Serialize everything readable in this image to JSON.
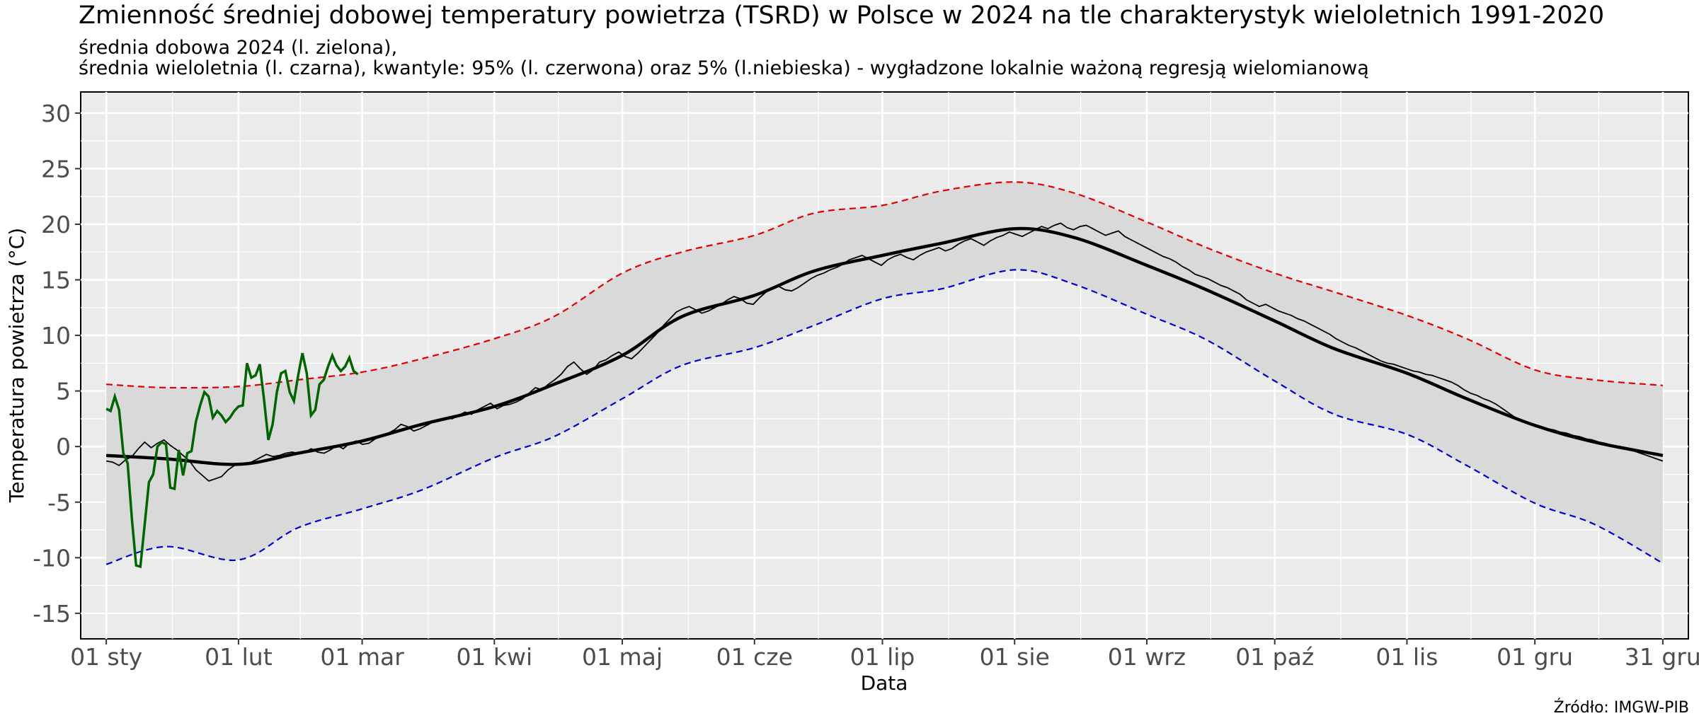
{
  "title": "Zmienność średniej dobowej temperatury powietrza (TSRD) w Polsce w 2024 na tle charakterystyk wieloletnich 1991-2020",
  "subtitle_line1": "średnia dobowa 2024 (l. zielona),",
  "subtitle_line2": "średnia wieloletnia (l. czarna), kwantyle: 95% (l. czerwona) oraz 5% (l.niebieska) - wygładzone lokalnie ważoną regresją wielomianową",
  "source": "Źródło: IMGW-PIB",
  "chart_data": {
    "type": "line",
    "xlabel": "Data",
    "ylabel": "Temperatura powietrza (°C)",
    "xlim": [
      "2024-01-01",
      "2024-12-31"
    ],
    "ylim": [
      -17.3,
      31.9
    ],
    "x_ticks": [
      {
        "date": "2024-01-01",
        "label": "01 sty"
      },
      {
        "date": "2024-02-01",
        "label": "01 lut"
      },
      {
        "date": "2024-03-01",
        "label": "01 mar"
      },
      {
        "date": "2024-04-01",
        "label": "01 kwi"
      },
      {
        "date": "2024-05-01",
        "label": "01 maj"
      },
      {
        "date": "2024-06-01",
        "label": "01 cze"
      },
      {
        "date": "2024-07-01",
        "label": "01 lip"
      },
      {
        "date": "2024-08-01",
        "label": "01 sie"
      },
      {
        "date": "2024-09-01",
        "label": "01 wrz"
      },
      {
        "date": "2024-10-01",
        "label": "01 paź"
      },
      {
        "date": "2024-11-01",
        "label": "01 lis"
      },
      {
        "date": "2024-12-01",
        "label": "01 gru"
      },
      {
        "date": "2024-12-31",
        "label": "31 gru"
      }
    ],
    "y_ticks": [
      -15,
      -10,
      -5,
      0,
      5,
      10,
      15,
      20,
      25,
      30
    ],
    "grid": true,
    "colors": {
      "panel": "#ebebeb",
      "grid": "#ffffff",
      "band": "#d9d9d9",
      "daily_2024": "#006400",
      "mean": "#000000",
      "q95": "#e00000",
      "q05": "#0000cc"
    },
    "series": [
      {
        "name": "średnia dobowa 2024",
        "color": "#006400",
        "points": [
          [
            "2024-01-01",
            3.4
          ],
          [
            "2024-01-02",
            3.2
          ],
          [
            "2024-01-03",
            4.5
          ],
          [
            "2024-01-04",
            3.3
          ],
          [
            "2024-01-05",
            -0.6
          ],
          [
            "2024-01-06",
            -1.5
          ],
          [
            "2024-01-07",
            -6.5
          ],
          [
            "2024-01-08",
            -10.7
          ],
          [
            "2024-01-09",
            -10.8
          ],
          [
            "2024-01-10",
            -7.0
          ],
          [
            "2024-01-11",
            -3.2
          ],
          [
            "2024-01-12",
            -2.5
          ],
          [
            "2024-01-13",
            0.0
          ],
          [
            "2024-01-14",
            0.4
          ],
          [
            "2024-01-15",
            0.2
          ],
          [
            "2024-01-16",
            -3.7
          ],
          [
            "2024-01-17",
            -3.8
          ],
          [
            "2024-01-18",
            -0.3
          ],
          [
            "2024-01-19",
            -2.6
          ],
          [
            "2024-01-20",
            -0.6
          ],
          [
            "2024-01-21",
            -0.4
          ],
          [
            "2024-01-22",
            2.2
          ],
          [
            "2024-01-23",
            3.7
          ],
          [
            "2024-01-24",
            4.9
          ],
          [
            "2024-01-25",
            4.5
          ],
          [
            "2024-01-26",
            2.6
          ],
          [
            "2024-01-27",
            3.2
          ],
          [
            "2024-01-28",
            2.8
          ],
          [
            "2024-01-29",
            2.2
          ],
          [
            "2024-01-30",
            2.6
          ],
          [
            "2024-01-31",
            3.2
          ],
          [
            "2024-02-01",
            3.6
          ],
          [
            "2024-02-02",
            3.7
          ],
          [
            "2024-02-03",
            7.5
          ],
          [
            "2024-02-04",
            6.2
          ],
          [
            "2024-02-05",
            6.4
          ],
          [
            "2024-02-06",
            7.4
          ],
          [
            "2024-02-07",
            4.2
          ],
          [
            "2024-02-08",
            0.6
          ],
          [
            "2024-02-09",
            2.0
          ],
          [
            "2024-02-10",
            4.9
          ],
          [
            "2024-02-11",
            6.6
          ],
          [
            "2024-02-12",
            6.8
          ],
          [
            "2024-02-13",
            4.9
          ],
          [
            "2024-02-14",
            4.1
          ],
          [
            "2024-02-15",
            6.4
          ],
          [
            "2024-02-16",
            8.4
          ],
          [
            "2024-02-17",
            6.6
          ],
          [
            "2024-02-18",
            2.8
          ],
          [
            "2024-02-19",
            3.3
          ],
          [
            "2024-02-20",
            5.6
          ],
          [
            "2024-02-21",
            6.0
          ],
          [
            "2024-02-22",
            7.2
          ],
          [
            "2024-02-23",
            8.2
          ],
          [
            "2024-02-24",
            7.3
          ],
          [
            "2024-02-25",
            6.8
          ],
          [
            "2024-02-26",
            7.2
          ],
          [
            "2024-02-27",
            8.0
          ],
          [
            "2024-02-28",
            6.8
          ],
          [
            "2024-02-29",
            6.5
          ]
        ]
      },
      {
        "name": "średnia wieloletnia",
        "color": "#000000",
        "points": [
          [
            "2024-01-01",
            -0.8
          ],
          [
            "2024-01-15",
            -1.1
          ],
          [
            "2024-02-01",
            -1.6
          ],
          [
            "2024-02-15",
            -0.6
          ],
          [
            "2024-03-01",
            0.5
          ],
          [
            "2024-03-15",
            2.0
          ],
          [
            "2024-04-01",
            3.6
          ],
          [
            "2024-04-15",
            5.6
          ],
          [
            "2024-05-01",
            8.2
          ],
          [
            "2024-05-15",
            11.7
          ],
          [
            "2024-06-01",
            13.6
          ],
          [
            "2024-06-15",
            15.8
          ],
          [
            "2024-07-01",
            17.2
          ],
          [
            "2024-07-15",
            18.3
          ],
          [
            "2024-08-01",
            19.6
          ],
          [
            "2024-08-15",
            18.8
          ],
          [
            "2024-09-01",
            16.3
          ],
          [
            "2024-09-15",
            14.1
          ],
          [
            "2024-10-01",
            11.3
          ],
          [
            "2024-10-15",
            8.8
          ],
          [
            "2024-11-01",
            6.6
          ],
          [
            "2024-11-15",
            4.3
          ],
          [
            "2024-12-01",
            1.9
          ],
          [
            "2024-12-15",
            0.4
          ],
          [
            "2024-12-31",
            -0.8
          ]
        ]
      },
      {
        "name": "kwantyl 95%",
        "color": "#e00000",
        "points": [
          [
            "2024-01-01",
            5.6
          ],
          [
            "2024-01-15",
            5.3
          ],
          [
            "2024-02-01",
            5.4
          ],
          [
            "2024-02-15",
            6.0
          ],
          [
            "2024-03-01",
            6.7
          ],
          [
            "2024-03-15",
            7.9
          ],
          [
            "2024-04-01",
            9.7
          ],
          [
            "2024-04-15",
            11.7
          ],
          [
            "2024-05-01",
            15.6
          ],
          [
            "2024-05-15",
            17.5
          ],
          [
            "2024-06-01",
            19.0
          ],
          [
            "2024-06-15",
            21.0
          ],
          [
            "2024-07-01",
            21.7
          ],
          [
            "2024-07-15",
            23.0
          ],
          [
            "2024-08-01",
            23.8
          ],
          [
            "2024-08-15",
            22.8
          ],
          [
            "2024-09-01",
            20.2
          ],
          [
            "2024-09-15",
            17.9
          ],
          [
            "2024-10-01",
            15.6
          ],
          [
            "2024-10-15",
            13.9
          ],
          [
            "2024-11-01",
            11.8
          ],
          [
            "2024-11-15",
            9.7
          ],
          [
            "2024-12-01",
            6.9
          ],
          [
            "2024-12-15",
            6.0
          ],
          [
            "2024-12-31",
            5.5
          ]
        ]
      },
      {
        "name": "kwantyl 5%",
        "color": "#0000cc",
        "points": [
          [
            "2024-01-01",
            -10.6
          ],
          [
            "2024-01-15",
            -9.0
          ],
          [
            "2024-02-01",
            -10.2
          ],
          [
            "2024-02-15",
            -7.3
          ],
          [
            "2024-03-01",
            -5.6
          ],
          [
            "2024-03-15",
            -3.9
          ],
          [
            "2024-04-01",
            -1.0
          ],
          [
            "2024-04-15",
            0.9
          ],
          [
            "2024-05-01",
            4.3
          ],
          [
            "2024-05-15",
            7.3
          ],
          [
            "2024-06-01",
            8.9
          ],
          [
            "2024-06-15",
            10.9
          ],
          [
            "2024-07-01",
            13.3
          ],
          [
            "2024-07-15",
            14.2
          ],
          [
            "2024-08-01",
            15.9
          ],
          [
            "2024-08-15",
            14.6
          ],
          [
            "2024-09-01",
            11.9
          ],
          [
            "2024-09-15",
            9.6
          ],
          [
            "2024-10-01",
            5.9
          ],
          [
            "2024-10-15",
            2.9
          ],
          [
            "2024-11-01",
            1.1
          ],
          [
            "2024-11-15",
            -1.7
          ],
          [
            "2024-12-01",
            -5.1
          ],
          [
            "2024-12-15",
            -7.0
          ],
          [
            "2024-12-31",
            -10.5
          ]
        ]
      }
    ],
    "mean_daily_raw": {
      "name": "średnia wieloletnia (dobowa)",
      "color": "#000000",
      "values": [
        -1.3,
        -1.4,
        -1.7,
        -1.2,
        -0.9,
        -0.2,
        0.4,
        -0.1,
        0.3,
        0.6,
        0.1,
        -0.3,
        -0.8,
        -1.3,
        -2.1,
        -2.6,
        -3.1,
        -2.9,
        -2.7,
        -2.1,
        -1.7,
        -1.5,
        -1.6,
        -1.3,
        -1.0,
        -0.7,
        -0.9,
        -0.8,
        -0.6,
        -0.5,
        -0.6,
        -0.5,
        -0.2,
        -0.5,
        -0.6,
        -0.3,
        0.1,
        -0.2,
        0.3,
        0.5,
        0.2,
        0.3,
        0.7,
        0.9,
        1.2,
        1.5,
        2.0,
        1.8,
        1.4,
        1.6,
        1.9,
        2.2,
        2.4,
        2.6,
        2.5,
        2.8,
        3.1,
        2.9,
        3.3,
        3.6,
        3.9,
        3.4,
        3.7,
        3.8,
        4.0,
        4.3,
        4.8,
        5.3,
        5.1,
        5.6,
        6.0,
        6.5,
        7.2,
        7.6,
        7.0,
        6.5,
        6.9,
        7.6,
        7.8,
        8.2,
        8.5,
        8.1,
        7.9,
        8.4,
        9.0,
        9.6,
        10.2,
        10.9,
        11.5,
        12.1,
        12.4,
        12.6,
        12.3,
        12.0,
        12.2,
        12.5,
        12.8,
        13.2,
        13.5,
        13.3,
        12.9,
        12.8,
        13.4,
        13.9,
        14.2,
        14.4,
        14.1,
        14.0,
        14.3,
        14.7,
        15.1,
        15.4,
        15.6,
        15.9,
        16.1,
        16.4,
        16.8,
        17.0,
        17.2,
        16.9,
        16.6,
        16.3,
        16.8,
        17.1,
        17.3,
        17.0,
        16.8,
        17.2,
        17.5,
        17.7,
        17.9,
        17.6,
        17.8,
        18.2,
        18.5,
        18.7,
        18.4,
        18.1,
        18.5,
        18.8,
        19.0,
        19.3,
        19.1,
        18.9,
        19.2,
        19.5,
        19.8,
        19.6,
        19.9,
        20.1,
        19.7,
        19.5,
        19.8,
        19.9,
        19.6,
        19.3,
        19.0,
        19.2,
        19.4,
        18.9,
        18.6,
        18.3,
        18.0,
        17.7,
        17.4,
        17.1,
        16.9,
        16.6,
        16.2,
        15.9,
        15.5,
        15.3,
        15.1,
        14.8,
        14.5,
        14.3,
        14.0,
        13.7,
        13.2,
        12.9,
        12.6,
        12.8,
        12.5,
        12.2,
        12.0,
        11.8,
        11.5,
        11.3,
        11.0,
        10.7,
        10.4,
        10.1,
        9.7,
        9.4,
        9.1,
        8.9,
        8.6,
        8.3,
        8.0,
        7.7,
        7.5,
        7.4,
        7.2,
        7.0,
        6.8,
        6.7,
        6.5,
        6.4,
        6.2,
        6.0,
        5.8,
        5.5,
        5.1,
        4.8,
        4.6,
        4.3,
        4.1,
        3.8,
        3.4,
        3.0,
        2.6,
        2.3,
        2.1,
        1.9,
        1.8,
        1.6,
        1.5,
        1.3,
        1.2,
        1.0,
        0.9,
        0.7,
        0.6,
        0.4,
        0.3,
        0.1,
        0.0,
        -0.2,
        -0.3,
        -0.5,
        -0.7,
        -0.9,
        -1.1,
        -1.3
      ]
    }
  }
}
